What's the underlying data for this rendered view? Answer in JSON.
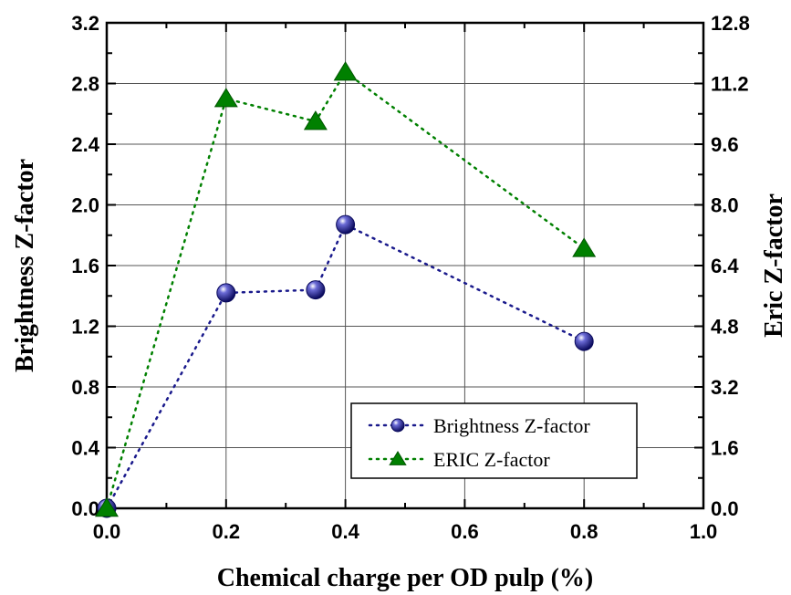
{
  "chart_data": {
    "type": "scatter",
    "xlabel": "Chemical charge per OD pulp (%)",
    "ylabel_left": "Brightness Z-factor",
    "ylabel_right": "Eric Z-factor",
    "xlim": [
      0.0,
      1.0
    ],
    "ylim_left": [
      0.0,
      3.2
    ],
    "ylim_right": [
      0.0,
      12.8
    ],
    "x_ticks": [
      "0.0",
      "0.2",
      "0.4",
      "0.6",
      "0.8",
      "1.0"
    ],
    "y_left_ticks": [
      "0.0",
      "0.4",
      "0.8",
      "1.2",
      "1.6",
      "2.0",
      "2.4",
      "2.8",
      "3.2"
    ],
    "y_right_ticks": [
      "0.0",
      "1.6",
      "3.2",
      "4.8",
      "6.4",
      "8.0",
      "9.6",
      "11.2",
      "12.8"
    ],
    "grid": true,
    "legend_position": "bottom-right",
    "series": [
      {
        "name": "Brightness Z-factor",
        "axis": "left",
        "marker": "sphere",
        "line_style": "dotted",
        "color": "#1a1a8c",
        "x": [
          0.0,
          0.2,
          0.35,
          0.4,
          0.8
        ],
        "y": [
          0.0,
          1.42,
          1.44,
          1.87,
          1.1
        ]
      },
      {
        "name": "ERIC Z-factor",
        "axis": "right",
        "marker": "triangle",
        "line_style": "dotted",
        "color": "#008000",
        "x": [
          0.0,
          0.2,
          0.35,
          0.4,
          0.8
        ],
        "y": [
          0.0,
          10.8,
          10.2,
          11.5,
          6.85
        ]
      }
    ]
  }
}
